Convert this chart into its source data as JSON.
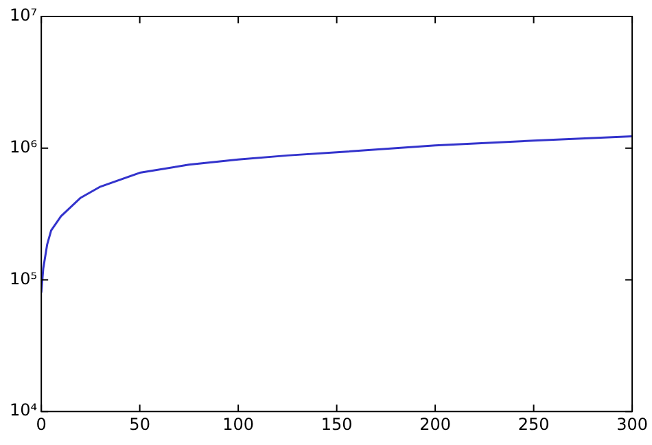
{
  "chart_data": {
    "type": "line",
    "x": [
      0,
      1,
      3,
      5,
      10,
      20,
      30,
      50,
      75,
      100,
      125,
      150,
      200,
      250,
      300
    ],
    "series": [
      {
        "color": "#3333cc",
        "values": [
          80000,
          122000,
          186000,
          237000,
          304000,
          420000,
          510000,
          650000,
          750000,
          820000,
          880000,
          930000,
          1050000,
          1140000,
          1230000
        ]
      }
    ],
    "xlim": [
      0,
      300
    ],
    "xticks": [
      0,
      50,
      100,
      150,
      200,
      250,
      300
    ],
    "ylim": [
      10000,
      10000000
    ],
    "yticks": [
      {
        "value": 10000,
        "label": "10⁴"
      },
      {
        "value": 100000,
        "label": "10⁵"
      },
      {
        "value": 1000000,
        "label": "10⁶"
      },
      {
        "value": 10000000,
        "label": "10⁷"
      }
    ],
    "log": "y",
    "grid": false,
    "legend": false,
    "marker": "none",
    "line_style": "solid"
  }
}
